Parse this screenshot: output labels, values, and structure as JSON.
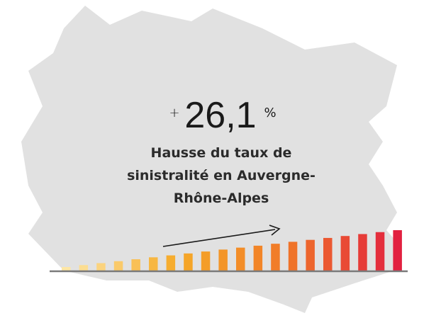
{
  "stat": {
    "prefix": "+",
    "value": "26,1",
    "suffix": "%"
  },
  "caption": [
    "Hausse du taux de",
    "sinistralité en Auvergne-",
    "Rhône-Alpes"
  ]
}
